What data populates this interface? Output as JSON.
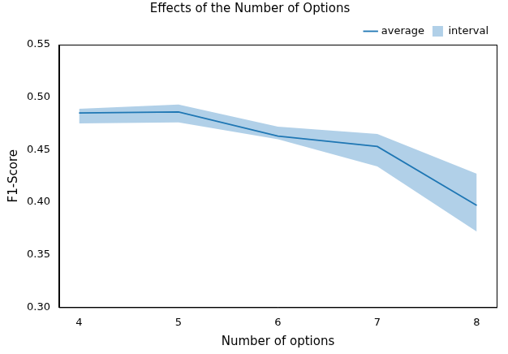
{
  "chart_data": {
    "type": "line",
    "title": "Effects of the Number of Options",
    "x_label": "Number of options",
    "y_label": "F1-Score",
    "x": [
      4,
      5,
      6,
      7,
      8
    ],
    "series": [
      {
        "name": "average",
        "color": "#1f77b4",
        "line_style": "solid",
        "values": [
          0.485,
          0.486,
          0.463,
          0.453,
          0.397
        ]
      },
      {
        "name": "interval",
        "color": "#a9cbe6",
        "type": "area",
        "lower": [
          0.475,
          0.476,
          0.46,
          0.434,
          0.372
        ],
        "upper": [
          0.489,
          0.493,
          0.472,
          0.465,
          0.427
        ]
      }
    ],
    "xlim": [
      3.8,
      8.2
    ],
    "xticks": [
      4,
      5,
      6,
      7,
      8
    ],
    "ylim": [
      0.3,
      0.55
    ],
    "yticks": [
      {
        "value": 0.3,
        "label": "0.30"
      },
      0.35,
      {
        "value": 0.4,
        "label": "0.40"
      },
      0.45,
      {
        "value": 0.5,
        "label": "0.50"
      },
      0.55
    ],
    "grid": false,
    "legend": "top-right"
  }
}
